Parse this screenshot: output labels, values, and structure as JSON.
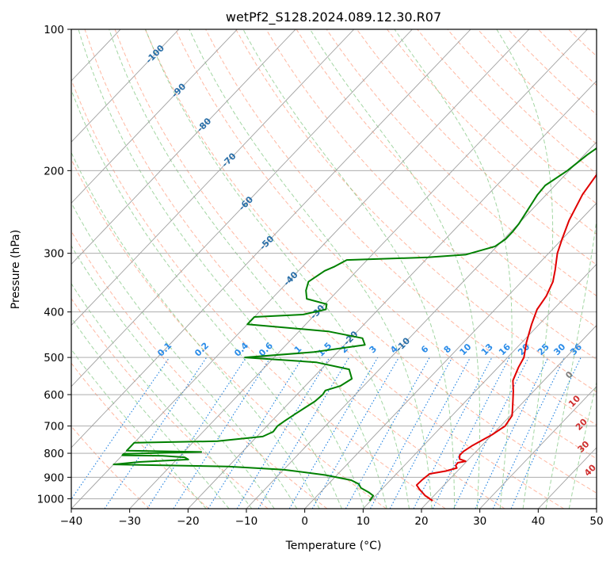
{
  "chart_data": {
    "type": "line",
    "title": "wetPf2_S128.2024.089.12.30.R07",
    "xlabel": "Temperature (°C)",
    "ylabel": "Pressure (hPa)",
    "xlim": [
      -40,
      50
    ],
    "ylim": [
      1050,
      100
    ],
    "y_scale": "log",
    "grid": true,
    "x_ticks": [
      -40,
      -30,
      -20,
      -10,
      0,
      10,
      20,
      30,
      40,
      50
    ],
    "y_ticks": [
      1000,
      900,
      800,
      700,
      600,
      500,
      400,
      300,
      200,
      100
    ],
    "colors": {
      "temperature": "#e00000",
      "dewpoint": "#008000",
      "isotherm": "#a0a0a0",
      "dry_adiabat": "#ff9a7a",
      "moist_adiabat": "#7cc47c",
      "mixing_ratio": "#1e80e0",
      "isotherm_label": "#2a6fa8",
      "dry_adiabat_label": "#d03030",
      "mixing_ratio_label": "#2b8ce8",
      "zero_label": "#808080"
    },
    "isotherm_labels": [
      -100,
      -90,
      -80,
      -70,
      -60,
      -50,
      -40,
      -30,
      -20,
      -10
    ],
    "mixing_ratio_labels": [
      "0.1",
      "0.2",
      "0.4",
      "0.6",
      "1",
      "1.5",
      "2",
      "3",
      "4",
      "6",
      "8",
      "10",
      "13",
      "16",
      "20",
      "25",
      "30",
      "36"
    ],
    "dry_adiabat_labels": [
      "0",
      "10",
      "20",
      "30",
      "40"
    ],
    "series": [
      {
        "key": "temperature",
        "points": [
          [
            20.6,
            1010
          ],
          [
            18.5,
            985
          ],
          [
            16.5,
            955
          ],
          [
            15.3,
            935
          ],
          [
            15.4,
            910
          ],
          [
            15.7,
            885
          ],
          [
            18,
            873
          ],
          [
            19.4,
            860
          ],
          [
            18.8,
            850
          ],
          [
            18.7,
            838
          ],
          [
            19.8,
            832
          ],
          [
            18.4,
            823
          ],
          [
            17.8,
            808
          ],
          [
            17.8,
            793
          ],
          [
            18.4,
            770
          ],
          [
            20,
            730
          ],
          [
            20.8,
            700
          ],
          [
            20.3,
            665
          ],
          [
            18.6,
            630
          ],
          [
            16.5,
            590
          ],
          [
            14.7,
            560
          ],
          [
            13.5,
            525
          ],
          [
            12.8,
            500
          ],
          [
            10.8,
            465
          ],
          [
            8.7,
            425
          ],
          [
            7.2,
            395
          ],
          [
            6.6,
            370
          ],
          [
            5.4,
            345
          ],
          [
            3.8,
            325
          ],
          [
            1.5,
            300
          ],
          [
            0,
            280
          ],
          [
            -1.9,
            255
          ],
          [
            -3.8,
            225
          ],
          [
            -4.8,
            200
          ],
          [
            -4.6,
            183
          ],
          [
            -3.2,
            170
          ],
          [
            -1.1,
            160
          ],
          [
            1.2,
            150
          ],
          [
            4.1,
            140
          ],
          [
            5.7,
            128
          ],
          [
            6.3,
            118
          ],
          [
            8.3,
            110
          ],
          [
            11.1,
            100
          ]
        ]
      },
      {
        "key": "dewpoint",
        "points": [
          [
            9.8,
            1010
          ],
          [
            9.6,
            985
          ],
          [
            8.2,
            968
          ],
          [
            6.2,
            948
          ],
          [
            5.2,
            930
          ],
          [
            3.3,
            913
          ],
          [
            -2,
            890
          ],
          [
            -10,
            867
          ],
          [
            -20,
            854
          ],
          [
            -40,
            845
          ],
          [
            -36,
            835
          ],
          [
            -28,
            825
          ],
          [
            -29,
            816
          ],
          [
            -33,
            810
          ],
          [
            -40,
            808
          ],
          [
            -40,
            802
          ],
          [
            -27,
            795
          ],
          [
            -40,
            790
          ],
          [
            -40,
            760
          ],
          [
            -26,
            754
          ],
          [
            -19,
            737
          ],
          [
            -18,
            720
          ],
          [
            -18.2,
            700
          ],
          [
            -17.8,
            683
          ],
          [
            -17.2,
            662
          ],
          [
            -16.5,
            640
          ],
          [
            -15.8,
            620
          ],
          [
            -15.6,
            600
          ],
          [
            -15.8,
            588
          ],
          [
            -14,
            575
          ],
          [
            -13.2,
            555
          ],
          [
            -15.2,
            530
          ],
          [
            -22,
            512
          ],
          [
            -35,
            500
          ],
          [
            -24,
            487
          ],
          [
            -16.5,
            470
          ],
          [
            -18,
            455
          ],
          [
            -25,
            440
          ],
          [
            -40,
            425
          ],
          [
            -40,
            410
          ],
          [
            -32,
            405
          ],
          [
            -29,
            395
          ],
          [
            -29.7,
            385
          ],
          [
            -34,
            375
          ],
          [
            -35.5,
            360
          ],
          [
            -36.5,
            345
          ],
          [
            -35.5,
            327
          ],
          [
            -34.5,
            320
          ],
          [
            -33.5,
            310
          ],
          [
            -20,
            306
          ],
          [
            -14,
            302
          ],
          [
            -10.3,
            290
          ],
          [
            -9.7,
            280
          ],
          [
            -9.7,
            270
          ],
          [
            -9.9,
            260
          ],
          [
            -10.8,
            240
          ],
          [
            -11.5,
            225
          ],
          [
            -11.7,
            215
          ],
          [
            -10.3,
            200
          ],
          [
            -9.5,
            185
          ],
          [
            -8.1,
            170
          ],
          [
            -10.3,
            157
          ],
          [
            -13.6,
            150
          ],
          [
            -12,
            140
          ],
          [
            -10.5,
            130
          ],
          [
            -10,
            122
          ],
          [
            -7.8,
            117
          ],
          [
            -6.4,
            110
          ],
          [
            -5,
            105
          ],
          [
            -4,
            100
          ]
        ]
      }
    ]
  }
}
